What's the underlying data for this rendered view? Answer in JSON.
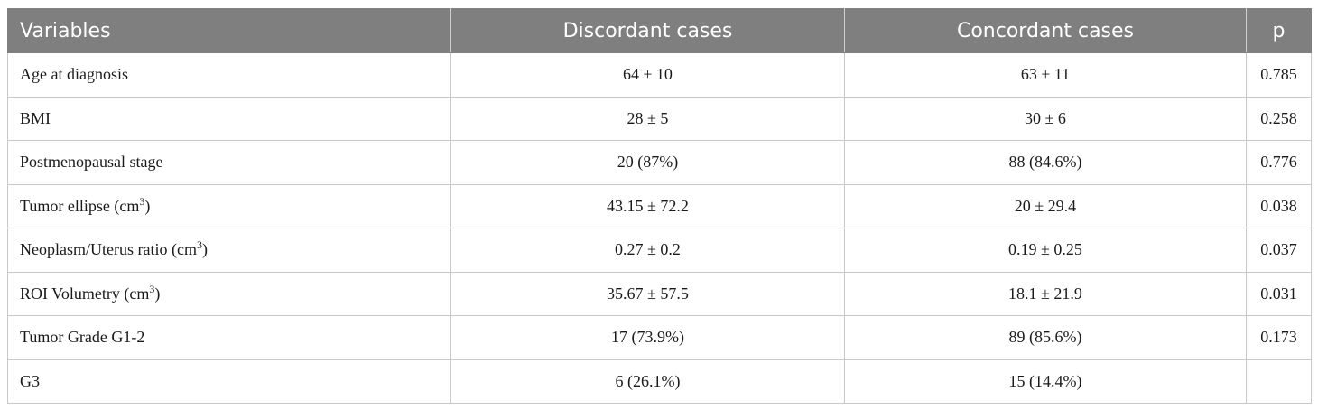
{
  "table": {
    "headers": [
      "Variables",
      "Discordant cases",
      "Concordant cases",
      "p"
    ],
    "rows": [
      {
        "variable": "Age at diagnosis",
        "unit_sup": "",
        "unit_suffix": "",
        "discordant": "64 ± 10",
        "concordant": "63 ± 11",
        "p": "0.785"
      },
      {
        "variable": "BMI",
        "unit_sup": "",
        "unit_suffix": "",
        "discordant": "28 ± 5",
        "concordant": "30 ± 6",
        "p": "0.258"
      },
      {
        "variable": "Postmenopausal stage",
        "unit_sup": "",
        "unit_suffix": "",
        "discordant": "20 (87%)",
        "concordant": "88 (84.6%)",
        "p": "0.776"
      },
      {
        "variable": "Tumor ellipse (cm",
        "unit_sup": "3",
        "unit_suffix": ")",
        "discordant": "43.15 ± 72.2",
        "concordant": "20 ± 29.4",
        "p": "0.038"
      },
      {
        "variable": "Neoplasm/Uterus ratio (cm",
        "unit_sup": "3",
        "unit_suffix": ")",
        "discordant": "0.27 ± 0.2",
        "concordant": "0.19 ± 0.25",
        "p": "0.037"
      },
      {
        "variable": "ROI Volumetry (cm",
        "unit_sup": "3",
        "unit_suffix": ")",
        "discordant": "35.67 ± 57.5",
        "concordant": "18.1 ± 21.9",
        "p": "0.031"
      },
      {
        "variable": "Tumor Grade G1-2",
        "unit_sup": "",
        "unit_suffix": "",
        "discordant": "17 (73.9%)",
        "concordant": "89 (85.6%)",
        "p": "0.173"
      },
      {
        "variable": "G3",
        "unit_sup": "",
        "unit_suffix": "",
        "discordant": "6 (26.1%)",
        "concordant": "15 (14.4%)",
        "p": ""
      }
    ]
  }
}
